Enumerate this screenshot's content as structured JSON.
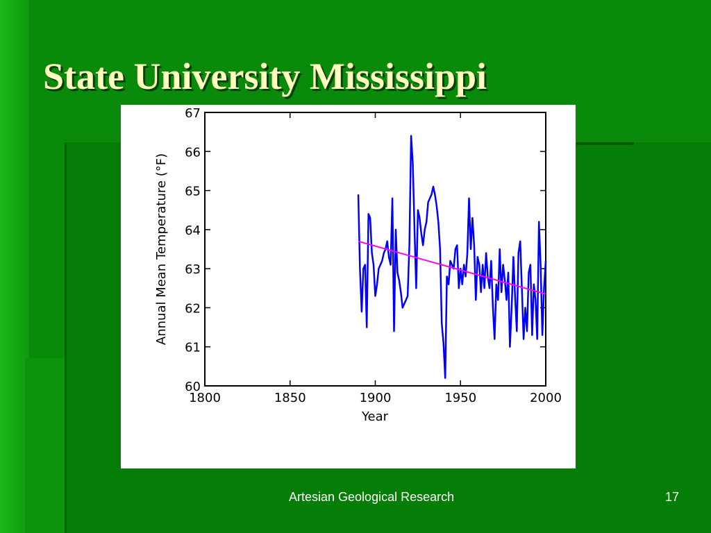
{
  "slide": {
    "title": "State University Mississippi",
    "footer_text": "Artesian Geological Research",
    "page_number": "17"
  },
  "colors": {
    "background": "#0a8a0a",
    "title": "#ffffc0",
    "series_line": "#0000ff",
    "trend_line": "#ff00ff"
  },
  "chart_data": {
    "type": "line",
    "title": "",
    "xlabel": "Year",
    "ylabel": "Annual Mean Temperature (°F)",
    "xlim": [
      1800,
      2000
    ],
    "ylim": [
      60,
      67
    ],
    "x_ticks": [
      1800,
      1850,
      1900,
      1950,
      2000
    ],
    "y_ticks": [
      60,
      61,
      62,
      63,
      64,
      65,
      66,
      67
    ],
    "grid": false,
    "series": [
      {
        "x": [
          1890,
          1891,
          1892,
          1893,
          1894,
          1895,
          1896,
          1897,
          1898,
          1899,
          1900,
          1901,
          1902,
          1903,
          1904,
          1905,
          1906,
          1907,
          1908,
          1909,
          1910,
          1911,
          1912,
          1913,
          1914,
          1915,
          1916,
          1917,
          1918,
          1919,
          1920,
          1921,
          1922,
          1923,
          1924,
          1925,
          1926,
          1927,
          1928,
          1929,
          1930,
          1931,
          1932,
          1933,
          1934,
          1935,
          1936,
          1937,
          1938,
          1939,
          1940,
          1941,
          1942,
          1943,
          1944,
          1945,
          1946,
          1947,
          1948,
          1949,
          1950,
          1951,
          1952,
          1953,
          1954,
          1955,
          1956,
          1957,
          1958,
          1959,
          1960,
          1961,
          1962,
          1963,
          1964,
          1965,
          1966,
          1967,
          1968,
          1969,
          1970,
          1971,
          1972,
          1973,
          1974,
          1975,
          1976,
          1977,
          1978,
          1979,
          1980,
          1981,
          1982,
          1983,
          1984,
          1985,
          1986,
          1987,
          1988,
          1989,
          1990,
          1991,
          1992,
          1993,
          1994,
          1995,
          1996,
          1997,
          1998,
          1999,
          2000
        ],
        "values": [
          64.9,
          63.0,
          61.9,
          63.0,
          63.1,
          61.5,
          64.4,
          64.3,
          63.4,
          63.1,
          62.3,
          62.6,
          63.0,
          63.1,
          63.2,
          63.4,
          63.5,
          63.7,
          63.3,
          63.1,
          64.8,
          61.4,
          64.0,
          62.9,
          62.7,
          62.4,
          62.0,
          62.1,
          62.2,
          62.3,
          63.6,
          66.4,
          65.7,
          64.0,
          62.5,
          64.5,
          64.3,
          63.9,
          63.6,
          64.0,
          64.2,
          64.7,
          64.8,
          64.9,
          65.1,
          64.9,
          64.6,
          64.2,
          63.5,
          61.6,
          61.1,
          60.2,
          62.8,
          62.6,
          63.2,
          63.1,
          63.0,
          63.5,
          63.6,
          62.5,
          63.0,
          62.6,
          63.1,
          62.8,
          63.4,
          64.8,
          63.5,
          64.3,
          63.6,
          62.2,
          63.3,
          63.1,
          62.4,
          63.1,
          62.5,
          63.4,
          62.8,
          62.5,
          63.2,
          62.0,
          61.2,
          62.6,
          62.2,
          63.5,
          62.4,
          63.1,
          62.7,
          62.2,
          62.9,
          61.0,
          62.0,
          63.3,
          62.3,
          61.4,
          63.4,
          63.7,
          62.5,
          61.2,
          62.0,
          61.4,
          62.9,
          63.1,
          61.3,
          62.6,
          62.2,
          61.2,
          64.2,
          63.1,
          61.3,
          62.5,
          63.2
        ],
        "color": "#0000ff"
      },
      {
        "x": [
          1890,
          2000
        ],
        "values": [
          63.7,
          62.35
        ],
        "color": "#ff00ff"
      }
    ]
  }
}
